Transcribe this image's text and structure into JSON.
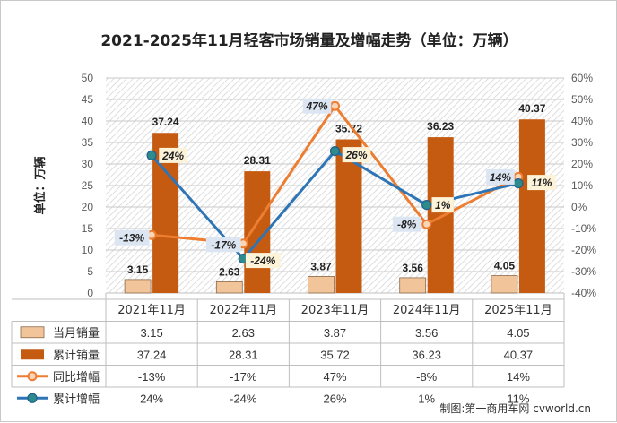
{
  "chart_data": {
    "type": "bar",
    "title": "2021-2025年11月轻客市场销量及增幅走势（单位：万辆）",
    "ylabel": "单位：万辆",
    "categories": [
      "2021年11月",
      "2022年11月",
      "2023年11月",
      "2024年11月",
      "2025年11月"
    ],
    "left_axis": {
      "min": 0,
      "max": 50,
      "step": 5,
      "ticks": [
        "0",
        "5",
        "10",
        "15",
        "20",
        "25",
        "30",
        "35",
        "40",
        "45",
        "50"
      ]
    },
    "right_axis": {
      "min": -40,
      "max": 60,
      "step": 10,
      "ticks": [
        "-40%",
        "-30%",
        "-20%",
        "-10%",
        "0%",
        "10%",
        "20%",
        "30%",
        "40%",
        "50%",
        "60%"
      ]
    },
    "grid": true,
    "legend": "bottom-table",
    "series": [
      {
        "name": "当月销量",
        "type": "bar",
        "axis": "left",
        "color": "#f2c49a",
        "values": [
          3.15,
          2.63,
          3.87,
          3.56,
          4.05
        ],
        "labels": [
          "3.15",
          "2.63",
          "3.87",
          "3.56",
          "4.05"
        ]
      },
      {
        "name": "累计销量",
        "type": "bar",
        "axis": "left",
        "color": "#c55a11",
        "values": [
          37.24,
          28.31,
          35.72,
          36.23,
          40.37
        ],
        "labels": [
          "37.24",
          "28.31",
          "35.72",
          "36.23",
          "40.37"
        ]
      },
      {
        "name": "同比增幅",
        "type": "line",
        "axis": "right",
        "color": "#ed7d31",
        "values": [
          -13,
          -17,
          47,
          -8,
          14
        ],
        "labels": [
          "-13%",
          "-17%",
          "47%",
          "-8%",
          "14%"
        ]
      },
      {
        "name": "累计增幅",
        "type": "line",
        "axis": "right",
        "color": "#2e75b6",
        "values": [
          24,
          -24,
          26,
          1,
          11
        ],
        "labels": [
          "24%",
          "-24%",
          "26%",
          "1%",
          "11%"
        ]
      }
    ]
  },
  "credit": "制图:第一商用车网 cvworld.cn"
}
